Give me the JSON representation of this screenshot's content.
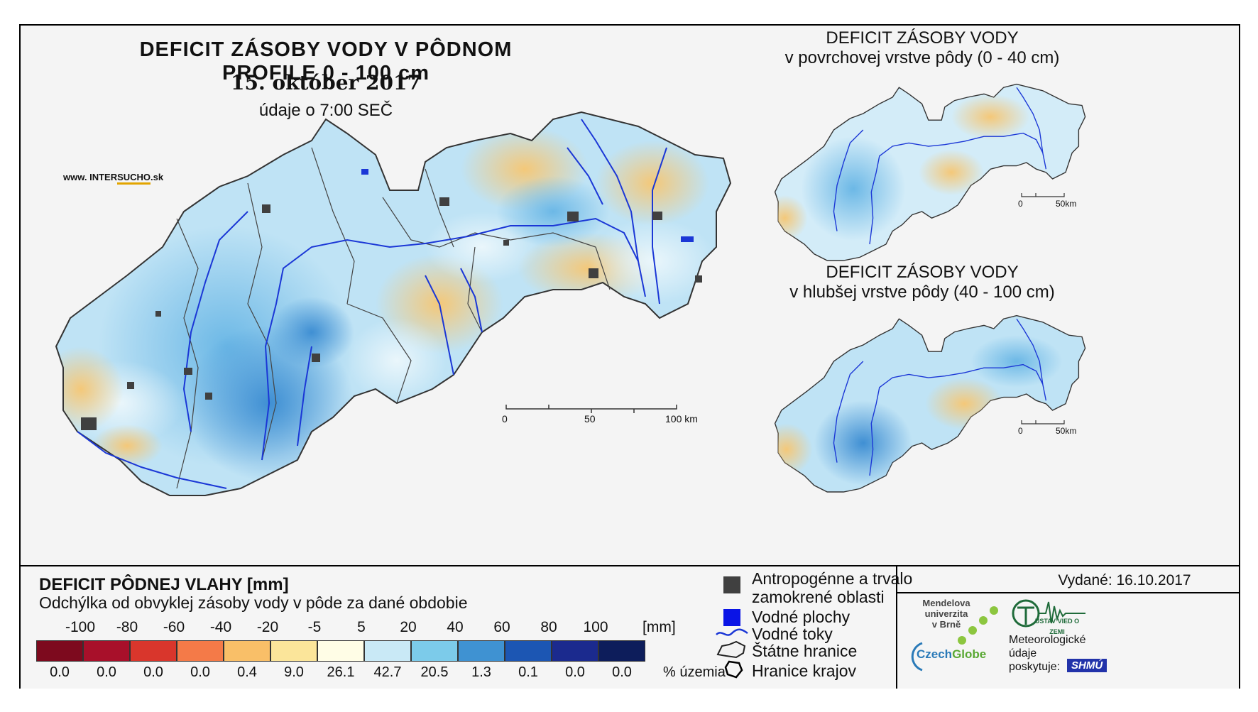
{
  "main": {
    "title": "DEFICIT ZÁSOBY VODY V PÔDNOM PROFILE 0 - 100 cm",
    "date": "15. október 2017",
    "time": "údaje o 7:00 SEČ",
    "brand_prefix": "www. INTER",
    "brand_accent": "SUCHO",
    "brand_suffix": ".sk",
    "scale_labels": [
      "0",
      "50",
      "100 km"
    ]
  },
  "inset_top": {
    "title_line1": "DEFICIT ZÁSOBY VODY",
    "title_line2": "v povrchovej vrstve pôdy (0 - 40 cm)",
    "scale_labels": [
      "0",
      "50km"
    ]
  },
  "inset_bottom": {
    "title_line1": "DEFICIT ZÁSOBY VODY",
    "title_line2": "v hlubšej vrstve pôdy (40 - 100 cm)",
    "scale_labels": [
      "0",
      "50km"
    ]
  },
  "legend": {
    "title": "DEFICIT PÔDNEJ VLAHY [mm]",
    "subtitle": "Odchýlka od obvyklej zásoby vody v pôde za dané obdobie",
    "breaks": [
      "-100",
      "-80",
      "-60",
      "-40",
      "-20",
      "-5",
      "5",
      "20",
      "40",
      "60",
      "80",
      "100"
    ],
    "unit": "[mm]",
    "classes": [
      {
        "color": "#7d0a1e",
        "pct": "0.0"
      },
      {
        "color": "#a8102a",
        "pct": "0.0"
      },
      {
        "color": "#d9362c",
        "pct": "0.0"
      },
      {
        "color": "#f47a48",
        "pct": "0.0"
      },
      {
        "color": "#f9bf68",
        "pct": "0.4"
      },
      {
        "color": "#fbe59a",
        "pct": "9.0"
      },
      {
        "color": "#fffde6",
        "pct": "26.1"
      },
      {
        "color": "#c9e9f6",
        "pct": "42.7"
      },
      {
        "color": "#7ccbea",
        "pct": "20.5"
      },
      {
        "color": "#3f92d2",
        "pct": "1.3"
      },
      {
        "color": "#1c56b3",
        "pct": "0.1"
      },
      {
        "color": "#1b2a8e",
        "pct": "0.0"
      },
      {
        "color": "#0d1d5b",
        "pct": "0.0"
      }
    ],
    "pct_unit": "% územia"
  },
  "key": {
    "anthropogenic_line1": "Antropogénne a trvalo",
    "anthropogenic_line2": "zamokrené oblasti",
    "water_bodies": "Vodné plochy",
    "rivers": "Vodné toky",
    "state_border": "Štátne hranice",
    "region_border": "Hranice krajov"
  },
  "issued": "Vydané: 16.10.2017",
  "orgs": {
    "mendel_line1": "Mendelova",
    "mendel_line2": "univerzita",
    "mendel_line3": "v Brně",
    "czechglobe_a": "Czech",
    "czechglobe_b": "Globe",
    "institute": "ÚSTAV VIED O ZEMI",
    "met_line1": "Meteorologické",
    "met_line2": "údaje",
    "met_line3": "poskytuje:",
    "shmu": "SHMÚ"
  },
  "colors": {
    "map_blue": "#a9d8f2",
    "map_light": "#d9eef8",
    "map_yellow": "#f7dd92",
    "river": "#1b37d6",
    "urban": "#404040"
  }
}
